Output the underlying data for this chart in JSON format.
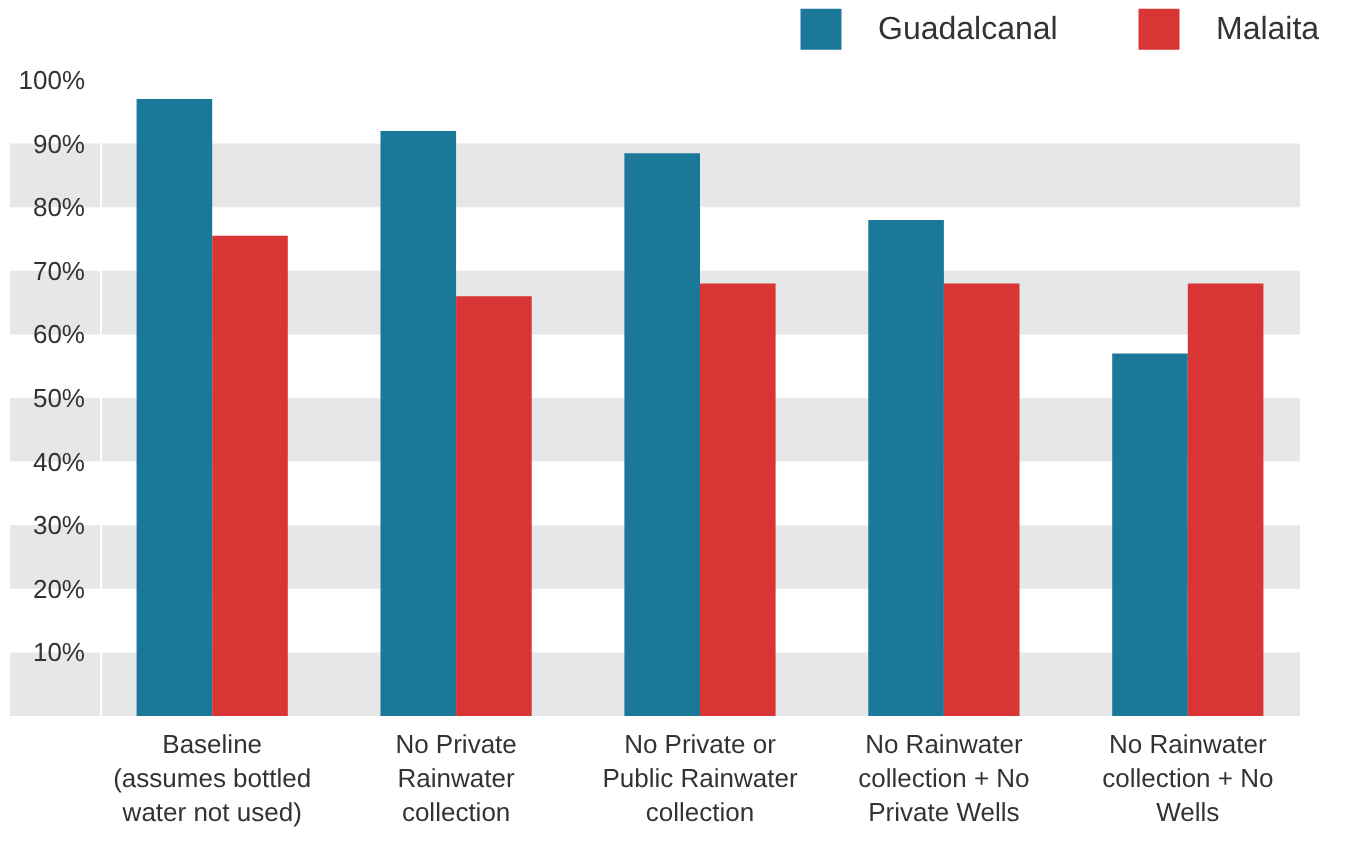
{
  "chart_data": {
    "type": "bar",
    "categories": [
      "Baseline (assumes bottled water not used)",
      "No Private Rainwater collection",
      "No Private or Public Rainwater collection",
      "No Rainwater collection + No Private Wells",
      "No Rainwater collection + No Wells"
    ],
    "series": [
      {
        "name": "Guadalcanal",
        "color": "#1c7899",
        "values": [
          97,
          92,
          88.5,
          78,
          57
        ]
      },
      {
        "name": "Malaita",
        "color": "#d93535",
        "values": [
          75.5,
          66,
          68,
          68,
          68
        ]
      }
    ],
    "ylim": [
      0,
      100
    ],
    "yticks": [
      {
        "value": 10,
        "label": "10%"
      },
      {
        "value": 20,
        "label": "20%"
      },
      {
        "value": 30,
        "label": "30%"
      },
      {
        "value": 40,
        "label": "40%"
      },
      {
        "value": 50,
        "label": "50%"
      },
      {
        "value": 60,
        "label": "60%"
      },
      {
        "value": 70,
        "label": "70%"
      },
      {
        "value": 80,
        "label": "80%"
      },
      {
        "value": 90,
        "label": "90%"
      },
      {
        "value": 100,
        "label": "100%"
      }
    ],
    "bands": [
      {
        "axis": "y",
        "from": 0,
        "to": 10,
        "color": "#e6e7e8"
      },
      {
        "axis": "y",
        "from": 20,
        "to": 30,
        "color": "#e6e7e8"
      },
      {
        "axis": "y",
        "from": 40,
        "to": 50,
        "color": "#e6e7e8"
      },
      {
        "axis": "y",
        "from": 60,
        "to": 70,
        "color": "#e6e7e8"
      },
      {
        "axis": "y",
        "from": 80,
        "to": 90,
        "color": "#e6e7e8"
      }
    ],
    "legend": "top right"
  }
}
